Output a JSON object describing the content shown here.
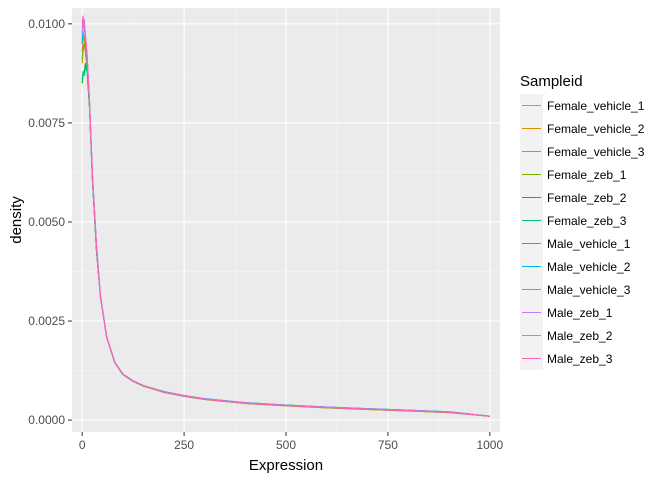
{
  "chart_data": {
    "type": "line",
    "title": "",
    "xlabel": "Expression",
    "ylabel": "density",
    "xlim": [
      -25,
      1025
    ],
    "ylim": [
      -0.0003,
      0.0104
    ],
    "x_ticks": [
      0,
      250,
      500,
      750,
      1000
    ],
    "x_tick_labels": [
      "0",
      "250",
      "500",
      "750",
      "1000"
    ],
    "y_ticks": [
      0.0,
      0.0025,
      0.005,
      0.0075,
      0.01
    ],
    "y_tick_labels": [
      "0.0000",
      "0.0025",
      "0.0050",
      "0.0075",
      "0.0100"
    ],
    "grid": true,
    "legend": {
      "title": "Sampleid",
      "position": "right"
    },
    "x": [
      0,
      2,
      5,
      8,
      12,
      18,
      25,
      35,
      45,
      60,
      80,
      100,
      125,
      150,
      200,
      250,
      300,
      400,
      500,
      600,
      700,
      800,
      900,
      1000
    ],
    "series": [
      {
        "name": "Female_vehicle_1",
        "color": "#F8766D",
        "values": [
          0.0093,
          0.0096,
          0.0097,
          0.0094,
          0.009,
          0.008,
          0.0062,
          0.0043,
          0.0031,
          0.0021,
          0.00145,
          0.00115,
          0.00098,
          0.00086,
          0.0007,
          0.0006,
          0.00052,
          0.00042,
          0.00036,
          0.00031,
          0.00027,
          0.00023,
          0.00019,
          0.0001
        ]
      },
      {
        "name": "Female_vehicle_2",
        "color": "#DE8C00",
        "values": [
          0.0095,
          0.0098,
          0.0096,
          0.0093,
          0.0089,
          0.0079,
          0.0061,
          0.0043,
          0.0031,
          0.0021,
          0.00145,
          0.00115,
          0.00098,
          0.00086,
          0.0007,
          0.0006,
          0.00052,
          0.00042,
          0.00036,
          0.00031,
          0.00027,
          0.00023,
          0.00019,
          0.0001
        ]
      },
      {
        "name": "Female_vehicle_3",
        "color": "#B79F00",
        "values": [
          0.009,
          0.0093,
          0.0095,
          0.0093,
          0.0089,
          0.0079,
          0.0061,
          0.0043,
          0.0031,
          0.0021,
          0.00145,
          0.00115,
          0.00098,
          0.00086,
          0.0007,
          0.0006,
          0.00052,
          0.00042,
          0.00036,
          0.00031,
          0.00027,
          0.00023,
          0.00019,
          0.0001
        ]
      },
      {
        "name": "Female_zeb_1",
        "color": "#7CAE00",
        "values": [
          0.0091,
          0.0094,
          0.0095,
          0.0093,
          0.0089,
          0.0079,
          0.0061,
          0.0043,
          0.0031,
          0.0021,
          0.00145,
          0.00115,
          0.00098,
          0.00086,
          0.00071,
          0.00061,
          0.00053,
          0.00043,
          0.00037,
          0.00032,
          0.00028,
          0.00024,
          0.0002,
          0.0001
        ]
      },
      {
        "name": "Female_zeb_2",
        "color": "#00BA38",
        "values": [
          0.0085,
          0.0087,
          0.0088,
          0.009,
          0.0088,
          0.0079,
          0.0061,
          0.0043,
          0.0031,
          0.0021,
          0.00145,
          0.00115,
          0.00098,
          0.00086,
          0.00071,
          0.00061,
          0.00053,
          0.00043,
          0.00037,
          0.00032,
          0.00028,
          0.00024,
          0.0002,
          0.0001
        ]
      },
      {
        "name": "Female_zeb_3",
        "color": "#00C08B",
        "values": [
          0.0086,
          0.0088,
          0.0087,
          0.0089,
          0.0088,
          0.0079,
          0.0061,
          0.0043,
          0.0031,
          0.0021,
          0.00145,
          0.00115,
          0.00098,
          0.00086,
          0.00071,
          0.00061,
          0.00053,
          0.00043,
          0.00037,
          0.00032,
          0.00028,
          0.00024,
          0.0002,
          0.0001
        ]
      },
      {
        "name": "Male_vehicle_1",
        "color": "#00BFC4",
        "values": [
          0.0095,
          0.0099,
          0.01,
          0.0096,
          0.0091,
          0.008,
          0.0062,
          0.0044,
          0.0031,
          0.0021,
          0.00146,
          0.00116,
          0.00099,
          0.00087,
          0.00072,
          0.00062,
          0.00054,
          0.00044,
          0.00038,
          0.00033,
          0.00029,
          0.00025,
          0.00021,
          0.0001
        ]
      },
      {
        "name": "Male_vehicle_2",
        "color": "#00B4F0",
        "values": [
          0.0096,
          0.0099,
          0.01,
          0.0096,
          0.0091,
          0.008,
          0.0062,
          0.0044,
          0.0031,
          0.0021,
          0.00146,
          0.00116,
          0.00099,
          0.00087,
          0.00072,
          0.00062,
          0.00054,
          0.00044,
          0.00038,
          0.00033,
          0.00029,
          0.00025,
          0.00021,
          0.0001
        ]
      },
      {
        "name": "Male_vehicle_3",
        "color": "#619CFF",
        "values": [
          0.0097,
          0.01,
          0.0101,
          0.0097,
          0.0092,
          0.008,
          0.0062,
          0.0044,
          0.0031,
          0.0021,
          0.00146,
          0.00116,
          0.00099,
          0.00087,
          0.00072,
          0.00062,
          0.00054,
          0.00044,
          0.00038,
          0.00033,
          0.00029,
          0.00025,
          0.00021,
          0.0001
        ]
      },
      {
        "name": "Male_zeb_1",
        "color": "#C77CFF",
        "values": [
          0.0098,
          0.0101,
          0.0101,
          0.0097,
          0.0092,
          0.008,
          0.0062,
          0.0044,
          0.0031,
          0.0021,
          0.00146,
          0.00116,
          0.00099,
          0.00087,
          0.00071,
          0.00061,
          0.00053,
          0.00043,
          0.00037,
          0.00032,
          0.00028,
          0.00024,
          0.0002,
          0.0001
        ]
      },
      {
        "name": "Male_zeb_2",
        "color": "#F564E3",
        "values": [
          0.0099,
          0.0101,
          0.01,
          0.0097,
          0.0092,
          0.008,
          0.0062,
          0.0044,
          0.0031,
          0.0021,
          0.00146,
          0.00116,
          0.00099,
          0.00087,
          0.00071,
          0.00061,
          0.00053,
          0.00043,
          0.00037,
          0.00032,
          0.00028,
          0.00024,
          0.0002,
          0.0001
        ]
      },
      {
        "name": "Male_zeb_3",
        "color": "#FF64B0",
        "values": [
          0.01,
          0.0102,
          0.01,
          0.0097,
          0.0092,
          0.008,
          0.0062,
          0.0044,
          0.0031,
          0.0021,
          0.00146,
          0.00116,
          0.00099,
          0.00087,
          0.00071,
          0.00061,
          0.00053,
          0.00043,
          0.00037,
          0.00032,
          0.00028,
          0.00024,
          0.0002,
          0.0001
        ]
      }
    ]
  }
}
